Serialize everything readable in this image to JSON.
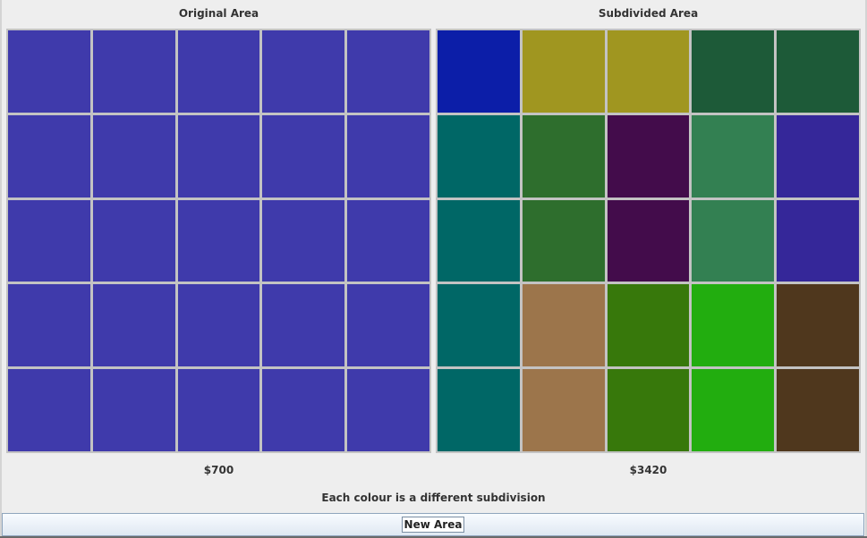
{
  "panels": {
    "original": {
      "title": "Original Area",
      "price": "$700",
      "cells": [
        "#3f3aab",
        "#3f3aab",
        "#3f3aab",
        "#3f3aab",
        "#3f3aab",
        "#3f3aab",
        "#3f3aab",
        "#3f3aab",
        "#3f3aab",
        "#3f3aab",
        "#3f3aab",
        "#3f3aab",
        "#3f3aab",
        "#3f3aab",
        "#3f3aab",
        "#3f3aab",
        "#3f3aab",
        "#3f3aab",
        "#3f3aab",
        "#3f3aab",
        "#3f3aab",
        "#3f3aab",
        "#3f3aab",
        "#3f3aab",
        "#3f3aab"
      ]
    },
    "subdivided": {
      "title": "Subdivided Area",
      "price": "$3420",
      "cells": [
        "#0c1ea8",
        "#a09620",
        "#a09620",
        "#1d5a38",
        "#1d5a38",
        "#006766",
        "#2e6e2d",
        "#430c4b",
        "#338052",
        "#352799",
        "#006766",
        "#2e6e2d",
        "#430c4b",
        "#338052",
        "#352799",
        "#006766",
        "#9c754b",
        "#37780b",
        "#22ad0f",
        "#4f371d",
        "#006766",
        "#9c754b",
        "#37780b",
        "#22ad0f",
        "#4f371d"
      ]
    }
  },
  "note": "Each colour is a different subdivision",
  "buttons": {
    "new_area": "New Area"
  }
}
